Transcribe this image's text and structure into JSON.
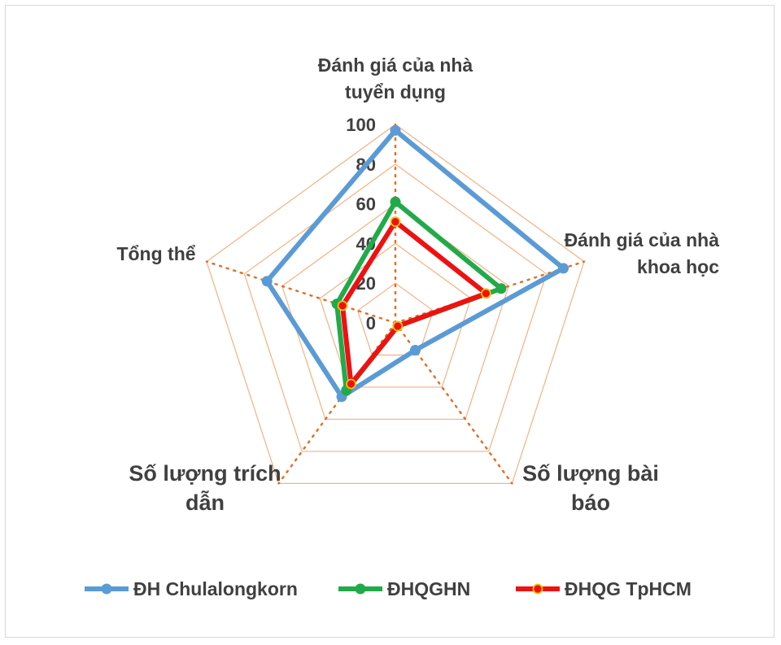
{
  "chart_data": {
    "type": "radar",
    "axes": [
      "Đánh giá của nhà tuyển dụng",
      "Đánh giá của nhà khoa học",
      "Số lượng bài báo",
      "Số lượng trích dẫn",
      "Tổng thể"
    ],
    "axis_label_lines": [
      [
        "Đánh giá của nhà",
        "tuyển dụng"
      ],
      [
        "Đánh giá của nhà",
        "khoa học"
      ],
      [
        "Số lượng bài",
        "báo"
      ],
      [
        "Số lượng trích",
        "dẫn"
      ],
      [
        "Tổng thể"
      ]
    ],
    "ticks": [
      "0",
      "20",
      "40",
      "60",
      "80",
      "100"
    ],
    "rmin": 0,
    "rmax": 100,
    "series": [
      {
        "name": "ĐH Chulalongkorn",
        "values": [
          97,
          89,
          17,
          46,
          68
        ],
        "color": "#5b9bd5"
      },
      {
        "name": "ĐHQGHN",
        "values": [
          61,
          56,
          2,
          42,
          31
        ],
        "color": "#22aa4a"
      },
      {
        "name": "ĐHQG TpHCM",
        "values": [
          51,
          48,
          2,
          38,
          28
        ],
        "color": "#ee1111"
      }
    ],
    "grid_color": "#f4b183",
    "legend_position": "bottom"
  }
}
